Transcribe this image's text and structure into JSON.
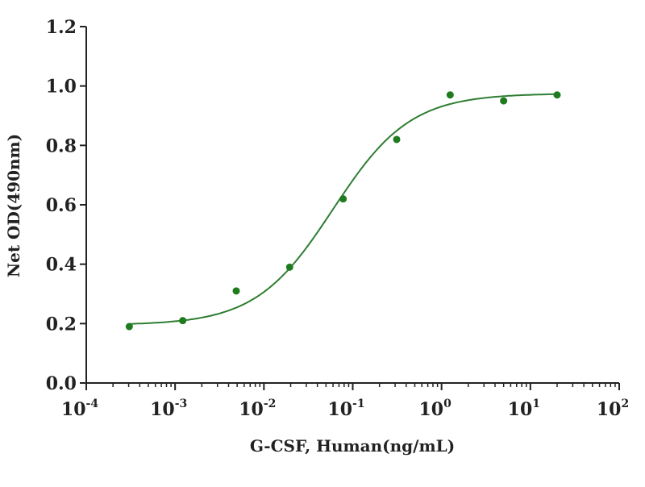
{
  "chart_data": {
    "type": "scatter",
    "title": "",
    "xlabel": "G-CSF, Human(ng/mL)",
    "ylabel": "Net OD(490nm)",
    "xscale": "log",
    "xlim": [
      0.0001,
      100
    ],
    "ylim": [
      0,
      1.2
    ],
    "x_ticks": [
      {
        "base": "10",
        "exp": "-4",
        "value": -4
      },
      {
        "base": "10",
        "exp": "-3",
        "value": -3
      },
      {
        "base": "10",
        "exp": "-2",
        "value": -2
      },
      {
        "base": "10",
        "exp": "-1",
        "value": -1
      },
      {
        "base": "10",
        "exp": "0",
        "value": 0
      },
      {
        "base": "10",
        "exp": "1",
        "value": 1
      },
      {
        "base": "10",
        "exp": "2",
        "value": 2
      }
    ],
    "y_ticks": [
      "0.0",
      "0.2",
      "0.4",
      "0.6",
      "0.8",
      "1.0",
      "1.2"
    ],
    "grid": false,
    "series": [
      {
        "name": "G-CSF, Human",
        "color": "#1e7b1e",
        "x": [
          0.000305,
          0.00122,
          0.00488,
          0.0195,
          0.078,
          0.3125,
          1.25,
          5,
          20
        ],
        "y": [
          0.19,
          0.21,
          0.31,
          0.39,
          0.62,
          0.82,
          0.97,
          0.95,
          0.97
        ]
      }
    ],
    "fit": {
      "model": "4PL",
      "bottom": 0.195,
      "top": 0.975,
      "ec50": 0.06,
      "hill": 1.0,
      "color": "#2e7d32"
    }
  }
}
